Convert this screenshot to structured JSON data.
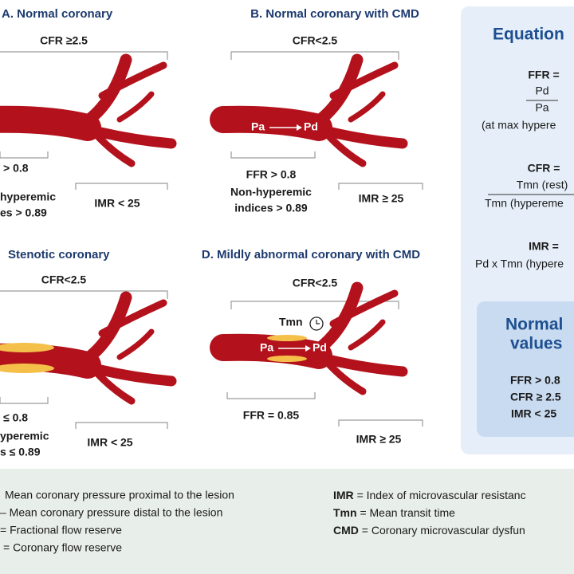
{
  "panels": [
    {
      "title": "A. Normal coronary",
      "cfr": "CFR ≥2.5",
      "left_labels": [
        "> 0.8",
        "hyperemic",
        "es > 0.89"
      ],
      "imr": "IMR < 25"
    },
    {
      "title": "B. Normal coronary with CMD",
      "cfr": "CFR<2.5",
      "pressure": [
        "Pa",
        "Pd"
      ],
      "left_labels": [
        "FFR > 0.8",
        "Non-hyperemic",
        "indices > 0.89"
      ],
      "imr": "IMR ≥ 25"
    },
    {
      "title": "Stenotic coronary",
      "cfr": "CFR<2.5",
      "left_labels": [
        "≤ 0.8",
        "yperemic",
        "s ≤ 0.89"
      ],
      "imr": "IMR < 25"
    },
    {
      "title": "D. Mildly abnormal coronary with CMD",
      "cfr": "CFR<2.5",
      "tmn": "Tmn",
      "pressure": [
        "Pa",
        "Pd"
      ],
      "left_labels": [
        "FFR = 0.85"
      ],
      "imr": "IMR ≥ 25"
    }
  ],
  "equations": {
    "title": "Equation",
    "ffr": {
      "label": "FFR =",
      "numerator": "Pd",
      "denominator": "Pa",
      "note": "(at max hypere"
    },
    "cfr": {
      "label": "CFR =",
      "numerator": "Tmn (rest)",
      "denominator": "Tmn (hypereme"
    },
    "imr": {
      "label": "IMR =",
      "formula": "Pd x Tmn (hypere"
    }
  },
  "normal_values": {
    "title": [
      "Normal",
      "values"
    ],
    "items": [
      "FFR > 0.8",
      "CFR ≥ 2.5",
      "IMR < 25"
    ]
  },
  "legend": {
    "left": [
      "Mean coronary pressure proximal to the lesion",
      "– Mean coronary pressure distal to the lesion",
      "= Fractional flow reserve",
      "= Coronary flow reserve"
    ],
    "right": [
      {
        "term": "IMR",
        "definition": "= Index of microvascular resistanc"
      },
      {
        "term": "Tmn",
        "definition": "= Mean transit time"
      },
      {
        "term": "CMD",
        "definition": "= Coronary microvascular dysfun"
      }
    ]
  }
}
